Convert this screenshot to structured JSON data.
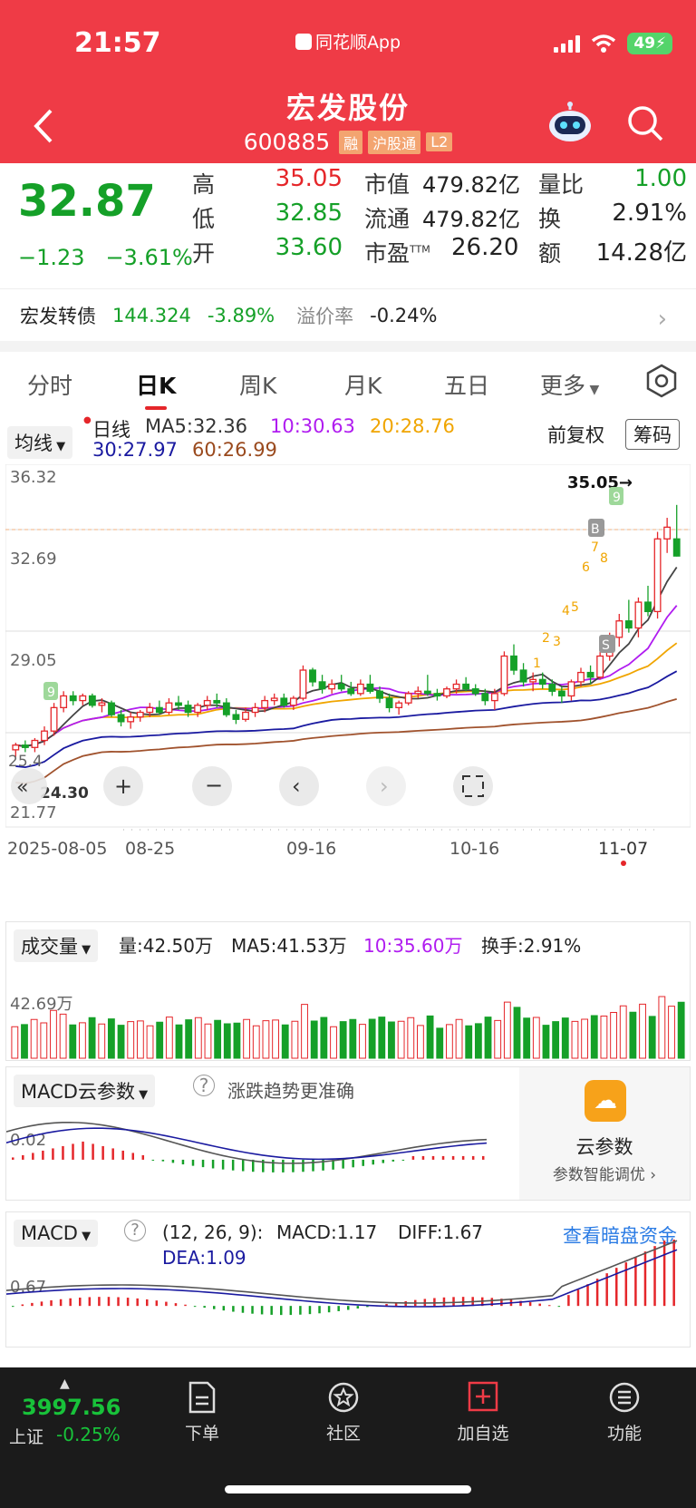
{
  "status": {
    "time": "21:57",
    "app": "同花顺App",
    "battery": "49"
  },
  "header": {
    "name": "宏发股份",
    "code": "600885",
    "tags": [
      "融",
      "沪股通",
      "L2"
    ]
  },
  "quote": {
    "price": "32.87",
    "change": "−1.23",
    "change_pct": "−3.61%",
    "high_label": "高",
    "high": "35.05",
    "low_label": "低",
    "low": "32.85",
    "open_label": "开",
    "open": "33.60",
    "mktcap_label": "市值",
    "mktcap": "479.82亿",
    "float_label": "流通",
    "float": "479.82亿",
    "pe_label": "市盈",
    "pe_sup": "TTM",
    "pe": "26.20",
    "volratio_label": "量比",
    "volratio": "1.00",
    "turnover_label": "换",
    "turnover": "2.91%",
    "amount_label": "额",
    "amount": "14.28亿"
  },
  "bond": {
    "name": "宏发转债",
    "price": "144.324",
    "pct": "-3.89%",
    "premium_label": "溢价率",
    "premium": "-0.24%"
  },
  "tabs": [
    "分时",
    "日K",
    "周K",
    "月K",
    "五日",
    "更多"
  ],
  "ma": {
    "dropdown": "均线",
    "period": "日线",
    "ma5": "MA5:32.36",
    "ma10": "10:30.63",
    "ma20": "20:28.76",
    "ma30": "30:27.97",
    "ma60": "60:26.99",
    "adjust": "前复权",
    "chouma": "筹码"
  },
  "chart_labels": {
    "y_top": "36.32",
    "y_mid": "32.69",
    "y_low": "29.05",
    "y_bottom": "21.77",
    "y_side1": "25.4",
    "y_side2": "24.30",
    "high_mark": "35.05→",
    "x_labels": [
      "2025-08-05",
      "08-25",
      "09-16",
      "10-16",
      "11-07"
    ],
    "signals": [
      "9",
      "9",
      "B",
      "S",
      "1",
      "2",
      "3",
      "4",
      "5",
      "6",
      "7",
      "8"
    ]
  },
  "chart_data": {
    "type": "candlestick",
    "ylim": [
      21.77,
      36.32
    ],
    "y_ticks": [
      36.32,
      32.69,
      29.05,
      21.77
    ],
    "x_ticks": [
      "2025-08-05",
      "08-25",
      "09-16",
      "10-16",
      "11-07"
    ],
    "candles": [
      [
        24.6,
        24.9,
        24.3,
        24.8
      ],
      [
        24.8,
        25.0,
        24.5,
        24.7
      ],
      [
        24.7,
        25.1,
        24.5,
        25.0
      ],
      [
        25.0,
        25.6,
        24.8,
        25.4
      ],
      [
        25.4,
        26.6,
        25.2,
        26.4
      ],
      [
        26.4,
        27.1,
        26.2,
        26.9
      ],
      [
        26.9,
        27.1,
        26.5,
        26.7
      ],
      [
        26.7,
        27.0,
        26.5,
        26.9
      ],
      [
        26.9,
        27.0,
        26.4,
        26.5
      ],
      [
        26.5,
        26.8,
        26.2,
        26.6
      ],
      [
        26.6,
        26.7,
        26.0,
        26.1
      ],
      [
        26.1,
        26.3,
        25.6,
        25.8
      ],
      [
        25.8,
        26.2,
        25.5,
        26.0
      ],
      [
        26.0,
        26.3,
        25.8,
        26.2
      ],
      [
        26.2,
        26.6,
        26.0,
        26.4
      ],
      [
        26.4,
        26.7,
        26.1,
        26.2
      ],
      [
        26.2,
        26.8,
        26.1,
        26.6
      ],
      [
        26.6,
        26.9,
        26.3,
        26.5
      ],
      [
        26.5,
        26.7,
        26.0,
        26.2
      ],
      [
        26.2,
        26.6,
        26.0,
        26.5
      ],
      [
        26.5,
        26.9,
        26.3,
        26.7
      ],
      [
        26.7,
        27.0,
        26.4,
        26.6
      ],
      [
        26.6,
        26.8,
        26.0,
        26.1
      ],
      [
        26.1,
        26.3,
        25.7,
        25.9
      ],
      [
        25.9,
        26.4,
        25.8,
        26.2
      ],
      [
        26.2,
        26.6,
        26.0,
        26.4
      ],
      [
        26.4,
        26.9,
        26.2,
        26.7
      ],
      [
        26.7,
        27.0,
        26.5,
        26.8
      ],
      [
        26.8,
        27.0,
        26.4,
        26.5
      ],
      [
        26.5,
        26.9,
        26.3,
        26.8
      ],
      [
        26.8,
        28.2,
        26.7,
        28.0
      ],
      [
        28.0,
        28.1,
        27.3,
        27.5
      ],
      [
        27.5,
        27.8,
        27.0,
        27.2
      ],
      [
        27.2,
        27.6,
        27.0,
        27.4
      ],
      [
        27.4,
        27.8,
        27.1,
        27.2
      ],
      [
        27.2,
        27.5,
        26.9,
        27.0
      ],
      [
        27.0,
        27.6,
        26.9,
        27.4
      ],
      [
        27.4,
        27.8,
        27.0,
        27.1
      ],
      [
        27.1,
        27.3,
        26.6,
        26.8
      ],
      [
        26.8,
        27.0,
        26.2,
        26.4
      ],
      [
        26.4,
        26.7,
        26.1,
        26.6
      ],
      [
        26.6,
        27.1,
        26.5,
        27.0
      ],
      [
        27.0,
        27.3,
        26.8,
        27.1
      ],
      [
        27.1,
        27.8,
        26.9,
        27.0
      ],
      [
        27.0,
        27.2,
        26.7,
        26.9
      ],
      [
        26.9,
        27.3,
        26.8,
        27.2
      ],
      [
        27.2,
        27.6,
        27.0,
        27.4
      ],
      [
        27.4,
        27.7,
        27.1,
        27.2
      ],
      [
        27.2,
        27.4,
        26.9,
        27.0
      ],
      [
        27.0,
        27.2,
        26.5,
        26.7
      ],
      [
        26.7,
        27.2,
        26.3,
        27.0
      ],
      [
        27.0,
        28.8,
        26.9,
        28.6
      ],
      [
        28.6,
        29.1,
        27.8,
        28.0
      ],
      [
        28.0,
        28.3,
        27.3,
        27.5
      ],
      [
        27.5,
        27.9,
        27.1,
        27.6
      ],
      [
        27.6,
        27.9,
        27.2,
        27.4
      ],
      [
        27.4,
        27.6,
        26.9,
        27.1
      ],
      [
        27.1,
        27.3,
        26.6,
        26.9
      ],
      [
        26.9,
        27.6,
        26.7,
        27.5
      ],
      [
        27.5,
        28.1,
        27.3,
        27.9
      ],
      [
        27.9,
        28.2,
        27.4,
        27.7
      ],
      [
        27.7,
        28.8,
        27.6,
        28.6
      ],
      [
        28.6,
        29.6,
        28.4,
        29.4
      ],
      [
        29.4,
        30.4,
        29.0,
        30.1
      ],
      [
        30.1,
        31.0,
        29.6,
        29.8
      ],
      [
        29.8,
        31.1,
        29.4,
        30.9
      ],
      [
        30.9,
        31.6,
        30.3,
        30.5
      ],
      [
        30.5,
        33.9,
        30.2,
        33.6
      ],
      [
        33.6,
        34.5,
        33.0,
        34.1
      ],
      [
        33.6,
        35.05,
        32.85,
        32.87
      ]
    ],
    "ma5_last": 32.36,
    "ma10_last": 30.63,
    "ma20_last": 28.76,
    "ma30_last": 27.97,
    "ma60_last": 26.99
  },
  "volume": {
    "dropdown": "成交量",
    "vol": "量:42.50万",
    "ma5": "MA5:41.53万",
    "ma10": "10:35.60万",
    "turnover": "换手:2.91%",
    "y_label": "42.69万"
  },
  "macdcloud": {
    "dropdown": "MACD云参数",
    "hint": "涨跌趋势更准确",
    "y_label": "0.02",
    "cloud_title": "云参数",
    "cloud_sub": "参数智能调优 ›"
  },
  "macd": {
    "dropdown": "MACD",
    "params": "(12, 26, 9):",
    "macd": "MACD:1.17",
    "diff": "DIFF:1.67",
    "dea": "DEA:1.09",
    "link": "查看暗盘资金",
    "y_label": "0.67"
  },
  "nav": {
    "index_value": "3997.56",
    "index_name": "上证",
    "index_pct": "-0.25%",
    "items": [
      "下单",
      "社区",
      "加自选",
      "功能"
    ]
  },
  "colors": {
    "header": "#ef3b46",
    "up": "#e5262a",
    "down": "#15a028"
  }
}
